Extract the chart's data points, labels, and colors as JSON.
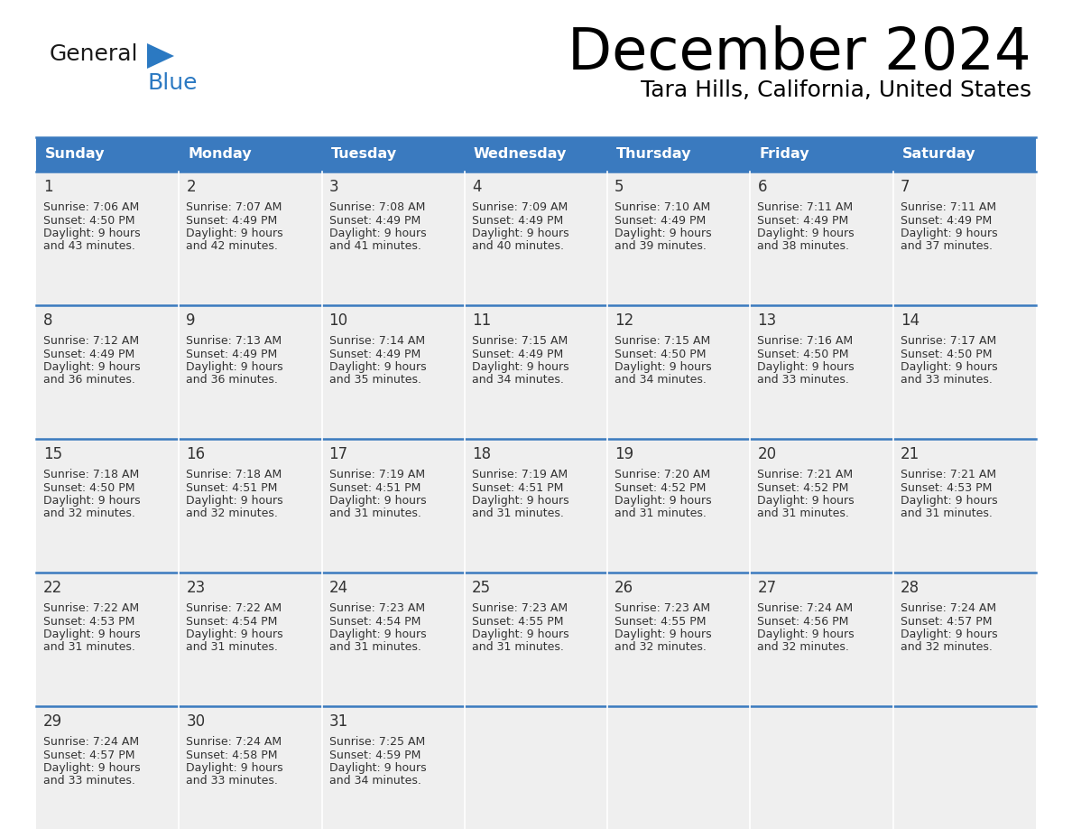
{
  "title": "December 2024",
  "subtitle": "Tara Hills, California, United States",
  "days_of_week": [
    "Sunday",
    "Monday",
    "Tuesday",
    "Wednesday",
    "Thursday",
    "Friday",
    "Saturday"
  ],
  "header_bg": "#3a7abf",
  "header_text": "#ffffff",
  "cell_bg": "#efefef",
  "border_color": "#3a7abf",
  "text_color": "#333333",
  "calendar_data": [
    [
      {
        "day": 1,
        "sunrise": "7:06 AM",
        "sunset": "4:50 PM",
        "daylight_line1": "9 hours",
        "daylight_line2": "and 43 minutes."
      },
      {
        "day": 2,
        "sunrise": "7:07 AM",
        "sunset": "4:49 PM",
        "daylight_line1": "9 hours",
        "daylight_line2": "and 42 minutes."
      },
      {
        "day": 3,
        "sunrise": "7:08 AM",
        "sunset": "4:49 PM",
        "daylight_line1": "9 hours",
        "daylight_line2": "and 41 minutes."
      },
      {
        "day": 4,
        "sunrise": "7:09 AM",
        "sunset": "4:49 PM",
        "daylight_line1": "9 hours",
        "daylight_line2": "and 40 minutes."
      },
      {
        "day": 5,
        "sunrise": "7:10 AM",
        "sunset": "4:49 PM",
        "daylight_line1": "9 hours",
        "daylight_line2": "and 39 minutes."
      },
      {
        "day": 6,
        "sunrise": "7:11 AM",
        "sunset": "4:49 PM",
        "daylight_line1": "9 hours",
        "daylight_line2": "and 38 minutes."
      },
      {
        "day": 7,
        "sunrise": "7:11 AM",
        "sunset": "4:49 PM",
        "daylight_line1": "9 hours",
        "daylight_line2": "and 37 minutes."
      }
    ],
    [
      {
        "day": 8,
        "sunrise": "7:12 AM",
        "sunset": "4:49 PM",
        "daylight_line1": "9 hours",
        "daylight_line2": "and 36 minutes."
      },
      {
        "day": 9,
        "sunrise": "7:13 AM",
        "sunset": "4:49 PM",
        "daylight_line1": "9 hours",
        "daylight_line2": "and 36 minutes."
      },
      {
        "day": 10,
        "sunrise": "7:14 AM",
        "sunset": "4:49 PM",
        "daylight_line1": "9 hours",
        "daylight_line2": "and 35 minutes."
      },
      {
        "day": 11,
        "sunrise": "7:15 AM",
        "sunset": "4:49 PM",
        "daylight_line1": "9 hours",
        "daylight_line2": "and 34 minutes."
      },
      {
        "day": 12,
        "sunrise": "7:15 AM",
        "sunset": "4:50 PM",
        "daylight_line1": "9 hours",
        "daylight_line2": "and 34 minutes."
      },
      {
        "day": 13,
        "sunrise": "7:16 AM",
        "sunset": "4:50 PM",
        "daylight_line1": "9 hours",
        "daylight_line2": "and 33 minutes."
      },
      {
        "day": 14,
        "sunrise": "7:17 AM",
        "sunset": "4:50 PM",
        "daylight_line1": "9 hours",
        "daylight_line2": "and 33 minutes."
      }
    ],
    [
      {
        "day": 15,
        "sunrise": "7:18 AM",
        "sunset": "4:50 PM",
        "daylight_line1": "9 hours",
        "daylight_line2": "and 32 minutes."
      },
      {
        "day": 16,
        "sunrise": "7:18 AM",
        "sunset": "4:51 PM",
        "daylight_line1": "9 hours",
        "daylight_line2": "and 32 minutes."
      },
      {
        "day": 17,
        "sunrise": "7:19 AM",
        "sunset": "4:51 PM",
        "daylight_line1": "9 hours",
        "daylight_line2": "and 31 minutes."
      },
      {
        "day": 18,
        "sunrise": "7:19 AM",
        "sunset": "4:51 PM",
        "daylight_line1": "9 hours",
        "daylight_line2": "and 31 minutes."
      },
      {
        "day": 19,
        "sunrise": "7:20 AM",
        "sunset": "4:52 PM",
        "daylight_line1": "9 hours",
        "daylight_line2": "and 31 minutes."
      },
      {
        "day": 20,
        "sunrise": "7:21 AM",
        "sunset": "4:52 PM",
        "daylight_line1": "9 hours",
        "daylight_line2": "and 31 minutes."
      },
      {
        "day": 21,
        "sunrise": "7:21 AM",
        "sunset": "4:53 PM",
        "daylight_line1": "9 hours",
        "daylight_line2": "and 31 minutes."
      }
    ],
    [
      {
        "day": 22,
        "sunrise": "7:22 AM",
        "sunset": "4:53 PM",
        "daylight_line1": "9 hours",
        "daylight_line2": "and 31 minutes."
      },
      {
        "day": 23,
        "sunrise": "7:22 AM",
        "sunset": "4:54 PM",
        "daylight_line1": "9 hours",
        "daylight_line2": "and 31 minutes."
      },
      {
        "day": 24,
        "sunrise": "7:23 AM",
        "sunset": "4:54 PM",
        "daylight_line1": "9 hours",
        "daylight_line2": "and 31 minutes."
      },
      {
        "day": 25,
        "sunrise": "7:23 AM",
        "sunset": "4:55 PM",
        "daylight_line1": "9 hours",
        "daylight_line2": "and 31 minutes."
      },
      {
        "day": 26,
        "sunrise": "7:23 AM",
        "sunset": "4:55 PM",
        "daylight_line1": "9 hours",
        "daylight_line2": "and 32 minutes."
      },
      {
        "day": 27,
        "sunrise": "7:24 AM",
        "sunset": "4:56 PM",
        "daylight_line1": "9 hours",
        "daylight_line2": "and 32 minutes."
      },
      {
        "day": 28,
        "sunrise": "7:24 AM",
        "sunset": "4:57 PM",
        "daylight_line1": "9 hours",
        "daylight_line2": "and 32 minutes."
      }
    ],
    [
      {
        "day": 29,
        "sunrise": "7:24 AM",
        "sunset": "4:57 PM",
        "daylight_line1": "9 hours",
        "daylight_line2": "and 33 minutes."
      },
      {
        "day": 30,
        "sunrise": "7:24 AM",
        "sunset": "4:58 PM",
        "daylight_line1": "9 hours",
        "daylight_line2": "and 33 minutes."
      },
      {
        "day": 31,
        "sunrise": "7:25 AM",
        "sunset": "4:59 PM",
        "daylight_line1": "9 hours",
        "daylight_line2": "and 34 minutes."
      },
      null,
      null,
      null,
      null
    ]
  ],
  "logo_color_general": "#1a1a1a",
  "logo_color_blue": "#2b79c2"
}
